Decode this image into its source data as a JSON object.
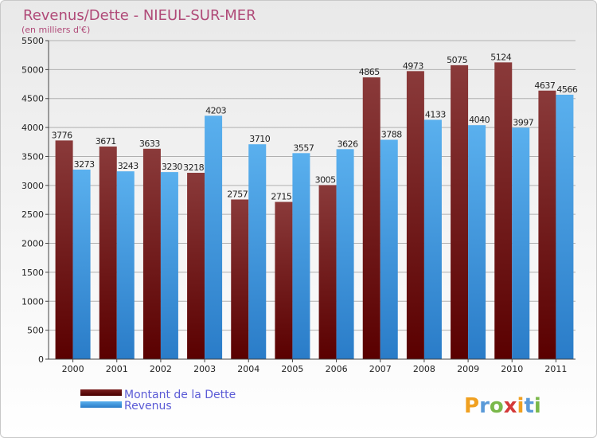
{
  "chart_data": {
    "type": "bar",
    "title": "Revenus/Dette - NIEUL-SUR-MER",
    "subtitle": "(en milliers d'€)",
    "categories": [
      "2000",
      "2001",
      "2002",
      "2003",
      "2004",
      "2005",
      "2006",
      "2007",
      "2008",
      "2009",
      "2010",
      "2011"
    ],
    "series": [
      {
        "name": "Montant de la Dette",
        "color": "#6b0d0d",
        "values": [
          3776,
          3671,
          3633,
          3218,
          2757,
          2715,
          3005,
          4865,
          4973,
          5075,
          5124,
          4637
        ]
      },
      {
        "name": "Revenus",
        "color": "#3a8fdc",
        "values": [
          3273,
          3243,
          3230,
          4203,
          3710,
          3557,
          3626,
          3788,
          4133,
          4040,
          3997,
          4566
        ]
      }
    ],
    "ylim": [
      0,
      5500
    ],
    "yticks": [
      0,
      500,
      1000,
      1500,
      2000,
      2500,
      3000,
      3500,
      4000,
      4500,
      5000,
      5500
    ],
    "grid": true,
    "legend": "bottom-left"
  },
  "logo": {
    "text": "Proxiti"
  }
}
